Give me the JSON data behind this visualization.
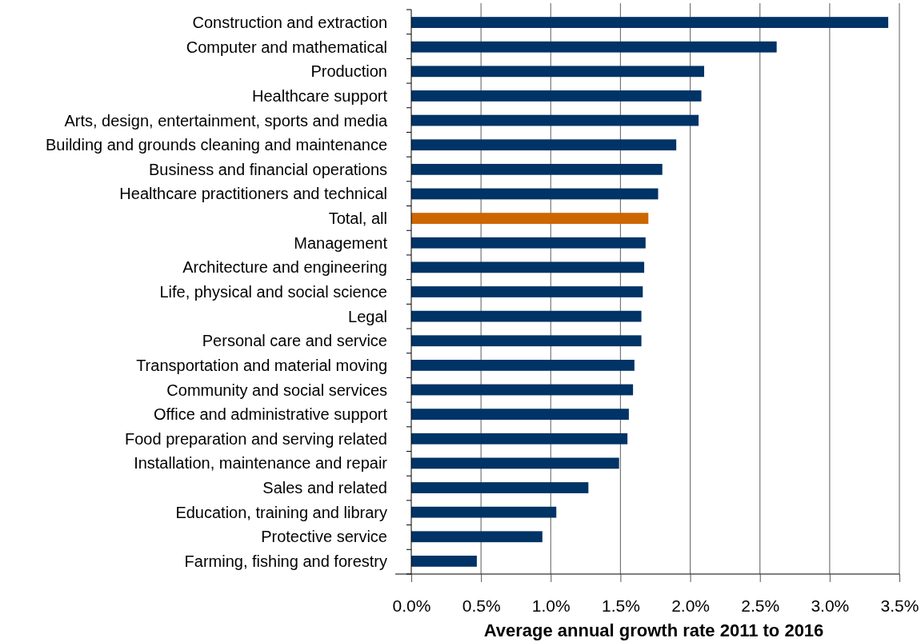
{
  "chart_data": {
    "type": "bar",
    "orientation": "horizontal",
    "xlabel": "Average annual growth rate 2011 to 2016",
    "categories": [
      "Construction and extraction",
      "Computer and mathematical",
      "Production",
      "Healthcare support",
      "Arts, design, entertainment, sports and media",
      "Building and grounds cleaning and maintenance",
      "Business and financial operations",
      "Healthcare practitioners and technical",
      "Total, all",
      "Management",
      "Architecture and engineering",
      "Life, physical and social science",
      "Legal",
      "Personal care and service",
      "Transportation and material moving",
      "Community and social services",
      "Office and administrative support",
      "Food preparation and serving related",
      "Installation, maintenance and repair",
      "Sales and related",
      "Education, training and library",
      "Protective service",
      "Farming, fishing and forestry"
    ],
    "values": [
      3.42,
      2.62,
      2.1,
      2.08,
      2.06,
      1.9,
      1.8,
      1.77,
      1.7,
      1.68,
      1.67,
      1.66,
      1.65,
      1.65,
      1.6,
      1.59,
      1.56,
      1.55,
      1.49,
      1.27,
      1.04,
      0.94,
      0.47
    ],
    "colors": [
      "#003366",
      "#003366",
      "#003366",
      "#003366",
      "#003366",
      "#003366",
      "#003366",
      "#003366",
      "#cc6600",
      "#003366",
      "#003366",
      "#003366",
      "#003366",
      "#003366",
      "#003366",
      "#003366",
      "#003366",
      "#003366",
      "#003366",
      "#003366",
      "#003366",
      "#003366",
      "#003366"
    ],
    "xlim": [
      0,
      3.5
    ],
    "xticks": [
      {
        "value": 0,
        "label": "0.0%"
      },
      {
        "value": 0.5,
        "label": "0.5%"
      },
      {
        "value": 1,
        "label": "1.0%"
      },
      {
        "value": 1.5,
        "label": "1.5%"
      },
      {
        "value": 2,
        "label": "2.0%"
      },
      {
        "value": 2.5,
        "label": "2.5%"
      },
      {
        "value": 3,
        "label": "3.0%"
      },
      {
        "value": 3.5,
        "label": "3.5%"
      }
    ],
    "grid": "x"
  }
}
